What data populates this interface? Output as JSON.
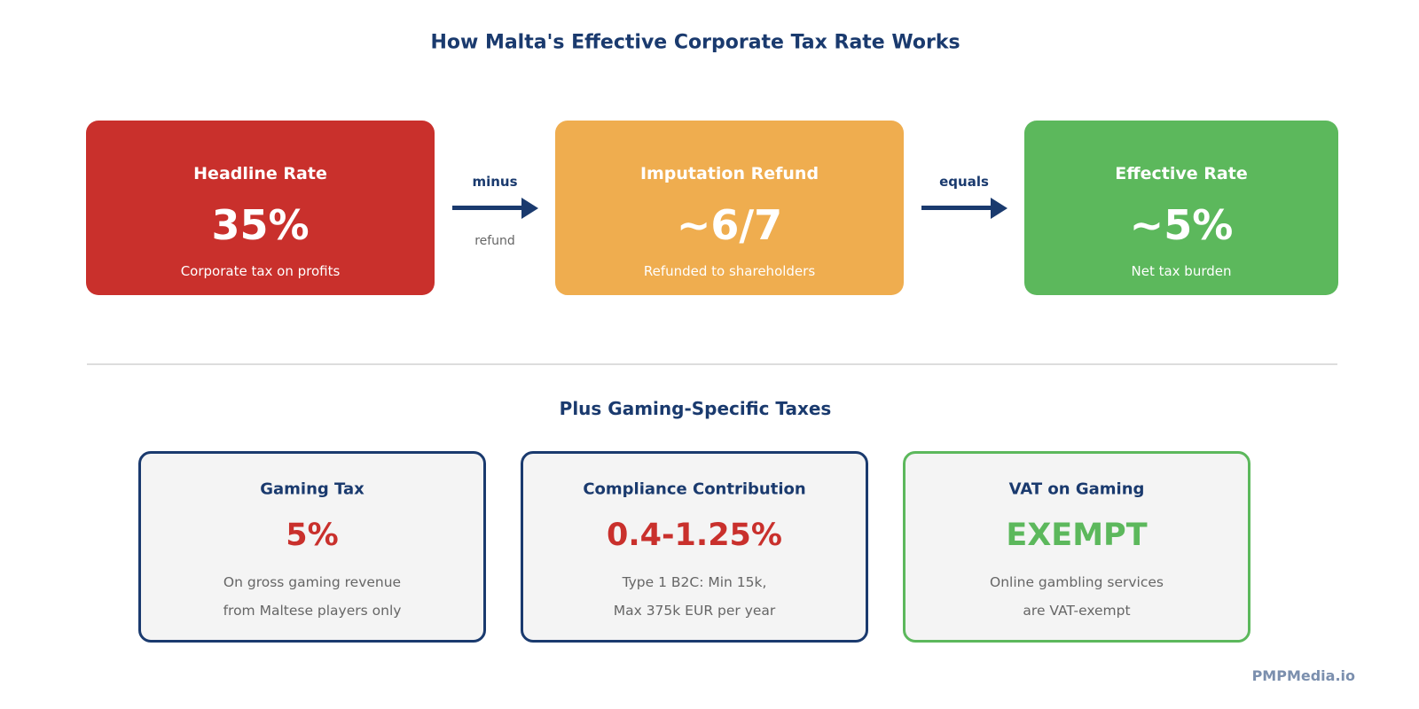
{
  "title": "How Malta's Effective Corporate Tax Rate Works",
  "colors": {
    "navy": "#1a3a6e",
    "red": "#c9302c",
    "orange": "#efad4f",
    "green": "#5cb85c",
    "gray_text": "#666666"
  },
  "flow": {
    "boxes": [
      {
        "title": "Headline Rate",
        "value": "35%",
        "caption": "Corporate tax on profits",
        "color": "#c9302c"
      },
      {
        "title": "Imputation Refund",
        "value": "~6/7",
        "caption": "Refunded to shareholders",
        "color": "#efad4f"
      },
      {
        "title": "Effective Rate",
        "value": "~5%",
        "caption": "Net tax burden",
        "color": "#5cb85c"
      }
    ],
    "operators": [
      {
        "label": "minus",
        "sublabel": "refund",
        "icon": "arrow-right-icon"
      },
      {
        "label": "equals",
        "icon": "arrow-right-icon"
      }
    ]
  },
  "gaming": {
    "heading": "Plus Gaming-Specific Taxes",
    "cards": [
      {
        "title": "Gaming Tax",
        "value": "5%",
        "value_color": "#c9302c",
        "border_color": "#1a3a6e",
        "lines": [
          "On gross gaming revenue",
          "from Maltese players only"
        ]
      },
      {
        "title": "Compliance Contribution",
        "value": "0.4-1.25%",
        "value_color": "#c9302c",
        "border_color": "#1a3a6e",
        "lines": [
          "Type 1 B2C: Min 15k,",
          "Max 375k EUR per year"
        ]
      },
      {
        "title": "VAT on Gaming",
        "value": "EXEMPT",
        "value_color": "#5cb85c",
        "border_color": "#5cb85c",
        "lines": [
          "Online gambling services",
          "are VAT-exempt"
        ]
      }
    ]
  },
  "watermark": "PMPMedia.io"
}
